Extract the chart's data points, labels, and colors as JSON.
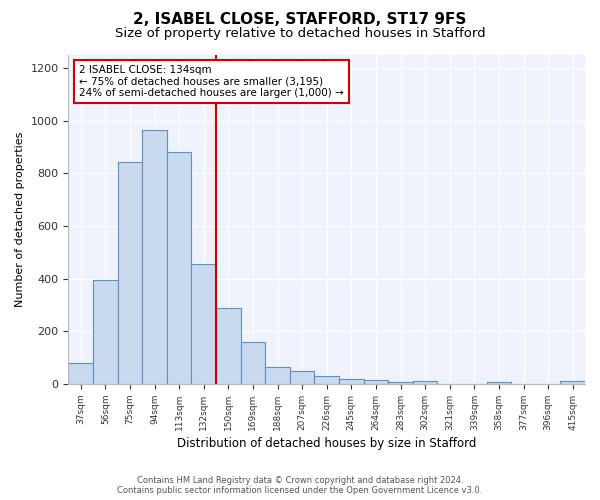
{
  "title": "2, ISABEL CLOSE, STAFFORD, ST17 9FS",
  "subtitle": "Size of property relative to detached houses in Stafford",
  "xlabel": "Distribution of detached houses by size in Stafford",
  "ylabel": "Number of detached properties",
  "categories": [
    "37sqm",
    "56sqm",
    "75sqm",
    "94sqm",
    "113sqm",
    "132sqm",
    "150sqm",
    "169sqm",
    "188sqm",
    "207sqm",
    "226sqm",
    "245sqm",
    "264sqm",
    "283sqm",
    "302sqm",
    "321sqm",
    "339sqm",
    "358sqm",
    "377sqm",
    "396sqm",
    "415sqm"
  ],
  "values": [
    80,
    395,
    845,
    965,
    880,
    455,
    290,
    160,
    65,
    48,
    30,
    20,
    15,
    8,
    10,
    0,
    0,
    8,
    0,
    0,
    10
  ],
  "bar_color": "#c9d9ee",
  "bar_edge_color": "#6090c0",
  "vline_x": 5.5,
  "vline_color": "#cc0000",
  "annotation_text": "2 ISABEL CLOSE: 134sqm\n← 75% of detached houses are smaller (3,195)\n24% of semi-detached houses are larger (1,000) →",
  "annotation_box_color": "#ffffff",
  "annotation_box_edge_color": "#cc0000",
  "ylim": [
    0,
    1250
  ],
  "yticks": [
    0,
    200,
    400,
    600,
    800,
    1000,
    1200
  ],
  "footer_line1": "Contains HM Land Registry data © Crown copyright and database right 2024.",
  "footer_line2": "Contains public sector information licensed under the Open Government Licence v3.0.",
  "background_color": "#edf2fb",
  "title_fontsize": 11,
  "subtitle_fontsize": 9.5,
  "grid_color": "#d0d8e8"
}
